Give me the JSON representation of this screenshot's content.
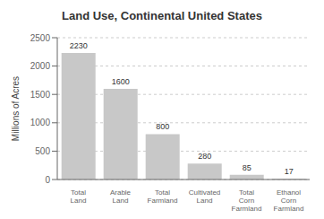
{
  "chart_data": {
    "type": "bar",
    "title": "Land Use, Continental United States",
    "ylabel": "Millions of Acres",
    "categories": [
      "Total\nLand",
      "Arable\nLand",
      "Total\nFarmland",
      "Cultivated\nLand",
      "Total\nCorn\nFarmland",
      "Ethanol\nCorn\nFarmland"
    ],
    "values": [
      2230,
      1600,
      800,
      280,
      85,
      17
    ],
    "color": "#c8c8c8",
    "ylim": [
      0,
      2500
    ],
    "yticks": [
      0,
      500,
      1000,
      1500,
      2000,
      2500
    ],
    "grid": true,
    "data_labels": true
  }
}
